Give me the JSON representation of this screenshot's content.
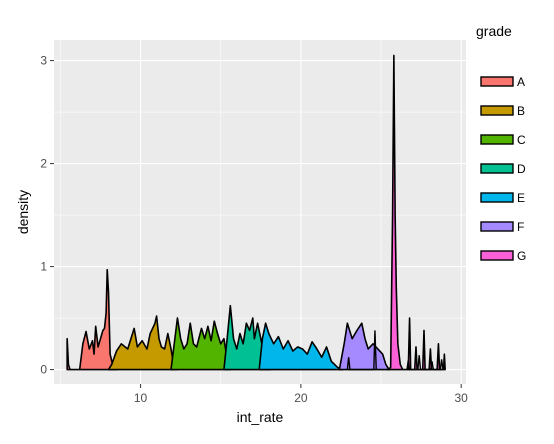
{
  "chart_data": {
    "type": "area",
    "xlabel": "int_rate",
    "ylabel": "density",
    "xlim": [
      4.6,
      30.3
    ],
    "ylim": [
      -0.14,
      3.2
    ],
    "x_ticks": [
      10,
      20,
      30
    ],
    "y_ticks": [
      0,
      1,
      2,
      3
    ],
    "grid": true,
    "legend": {
      "title": "grade",
      "position": "right"
    },
    "series": [
      {
        "name": "A",
        "color": "#F8766D",
        "points": [
          [
            5.42,
            0
          ],
          [
            5.42,
            0.3
          ],
          [
            5.5,
            0.05
          ],
          [
            5.6,
            0
          ],
          [
            6.2,
            0
          ],
          [
            6.4,
            0.25
          ],
          [
            6.6,
            0.37
          ],
          [
            6.8,
            0.2
          ],
          [
            7.0,
            0.28
          ],
          [
            7.1,
            0.15
          ],
          [
            7.2,
            0.42
          ],
          [
            7.35,
            0.22
          ],
          [
            7.5,
            0.3
          ],
          [
            7.65,
            0.38
          ],
          [
            7.75,
            0.4
          ],
          [
            7.85,
            0.55
          ],
          [
            7.92,
            0.97
          ],
          [
            8.0,
            0.75
          ],
          [
            8.1,
            0.15
          ],
          [
            8.3,
            0.02
          ],
          [
            8.5,
            0
          ]
        ]
      },
      {
        "name": "B",
        "color": "#C49A00",
        "points": [
          [
            8.0,
            0
          ],
          [
            8.2,
            0.05
          ],
          [
            8.5,
            0.18
          ],
          [
            8.8,
            0.25
          ],
          [
            9.2,
            0.2
          ],
          [
            9.6,
            0.4
          ],
          [
            9.8,
            0.22
          ],
          [
            10.1,
            0.28
          ],
          [
            10.4,
            0.2
          ],
          [
            10.6,
            0.35
          ],
          [
            10.9,
            0.45
          ],
          [
            11.0,
            0.52
          ],
          [
            11.15,
            0.3
          ],
          [
            11.3,
            0.22
          ],
          [
            11.5,
            0.2
          ],
          [
            11.7,
            0.35
          ],
          [
            11.9,
            0.2
          ],
          [
            12.1,
            0.02
          ],
          [
            12.3,
            0
          ]
        ]
      },
      {
        "name": "C",
        "color": "#53B400",
        "points": [
          [
            11.9,
            0
          ],
          [
            12.1,
            0.25
          ],
          [
            12.3,
            0.5
          ],
          [
            12.5,
            0.3
          ],
          [
            12.7,
            0.2
          ],
          [
            12.9,
            0.25
          ],
          [
            13.1,
            0.45
          ],
          [
            13.3,
            0.25
          ],
          [
            13.5,
            0.22
          ],
          [
            13.8,
            0.4
          ],
          [
            14.0,
            0.3
          ],
          [
            14.2,
            0.42
          ],
          [
            14.4,
            0.28
          ],
          [
            14.6,
            0.47
          ],
          [
            14.8,
            0.35
          ],
          [
            15.0,
            0.25
          ],
          [
            15.2,
            0.3
          ],
          [
            15.4,
            0.1
          ],
          [
            15.6,
            0
          ]
        ]
      },
      {
        "name": "D",
        "color": "#00C094",
        "points": [
          [
            15.2,
            0
          ],
          [
            15.4,
            0.3
          ],
          [
            15.6,
            0.62
          ],
          [
            15.8,
            0.3
          ],
          [
            16.0,
            0.2
          ],
          [
            16.2,
            0.35
          ],
          [
            16.4,
            0.25
          ],
          [
            16.6,
            0.45
          ],
          [
            16.8,
            0.38
          ],
          [
            17.0,
            0.5
          ],
          [
            17.1,
            0.3
          ],
          [
            17.3,
            0.45
          ],
          [
            17.5,
            0.3
          ],
          [
            17.7,
            0.15
          ],
          [
            17.9,
            0.05
          ],
          [
            18.1,
            0
          ]
        ]
      },
      {
        "name": "E",
        "color": "#00B6EB",
        "points": [
          [
            17.4,
            0
          ],
          [
            17.6,
            0.3
          ],
          [
            17.8,
            0.45
          ],
          [
            18.0,
            0.35
          ],
          [
            18.3,
            0.25
          ],
          [
            18.6,
            0.32
          ],
          [
            18.9,
            0.2
          ],
          [
            19.2,
            0.28
          ],
          [
            19.5,
            0.18
          ],
          [
            19.8,
            0.22
          ],
          [
            20.1,
            0.2
          ],
          [
            20.4,
            0.15
          ],
          [
            20.7,
            0.27
          ],
          [
            21.0,
            0.2
          ],
          [
            21.3,
            0.12
          ],
          [
            21.6,
            0.22
          ],
          [
            21.9,
            0.08
          ],
          [
            22.3,
            0.02
          ],
          [
            22.6,
            0
          ]
        ]
      },
      {
        "name": "F",
        "color": "#A58AFF",
        "points": [
          [
            22.4,
            0
          ],
          [
            22.7,
            0.25
          ],
          [
            22.9,
            0.45
          ],
          [
            23.2,
            0.3
          ],
          [
            23.5,
            0.38
          ],
          [
            23.8,
            0.45
          ],
          [
            24.0,
            0.3
          ],
          [
            24.2,
            0.2
          ],
          [
            24.5,
            0.25
          ],
          [
            24.8,
            0.2
          ],
          [
            25.1,
            0.15
          ],
          [
            25.3,
            0.05
          ],
          [
            25.5,
            0
          ]
        ]
      },
      {
        "name": "G",
        "color": "#FB61D7",
        "points": [
          [
            25.4,
            0
          ],
          [
            25.6,
            0.02
          ],
          [
            25.72,
            1.5
          ],
          [
            25.8,
            3.05
          ],
          [
            25.88,
            1.5
          ],
          [
            25.95,
            0.8
          ],
          [
            26.05,
            0.25
          ],
          [
            26.2,
            0.05
          ],
          [
            26.35,
            0
          ],
          [
            26.7,
            0
          ],
          [
            26.78,
            0.5
          ],
          [
            26.85,
            0
          ],
          [
            27.1,
            0
          ],
          [
            27.18,
            0.22
          ],
          [
            27.25,
            0
          ],
          [
            27.6,
            0
          ],
          [
            27.68,
            0.38
          ],
          [
            27.75,
            0
          ],
          [
            28.0,
            0
          ],
          [
            28.08,
            0.2
          ],
          [
            28.15,
            0
          ],
          [
            28.5,
            0
          ],
          [
            28.58,
            0.25
          ],
          [
            28.65,
            0
          ],
          [
            28.9,
            0
          ],
          [
            28.95,
            0.15
          ],
          [
            29.0,
            0
          ]
        ]
      }
    ],
    "extra_lines": [
      [
        [
          22.9,
          0
        ],
        [
          22.98,
          0.12
        ],
        [
          23.06,
          0
        ],
        [
          24.55,
          0
        ],
        [
          24.62,
          0.38
        ],
        [
          24.7,
          0
        ]
      ],
      [
        [
          26.62,
          0
        ],
        [
          26.7,
          0.09
        ],
        [
          26.78,
          0
        ],
        [
          27.3,
          0
        ],
        [
          27.38,
          0.14
        ],
        [
          27.46,
          0
        ],
        [
          28.1,
          0
        ],
        [
          28.18,
          0.08
        ],
        [
          28.26,
          0
        ],
        [
          28.7,
          0
        ],
        [
          28.78,
          0.1
        ],
        [
          28.86,
          0
        ]
      ]
    ]
  }
}
